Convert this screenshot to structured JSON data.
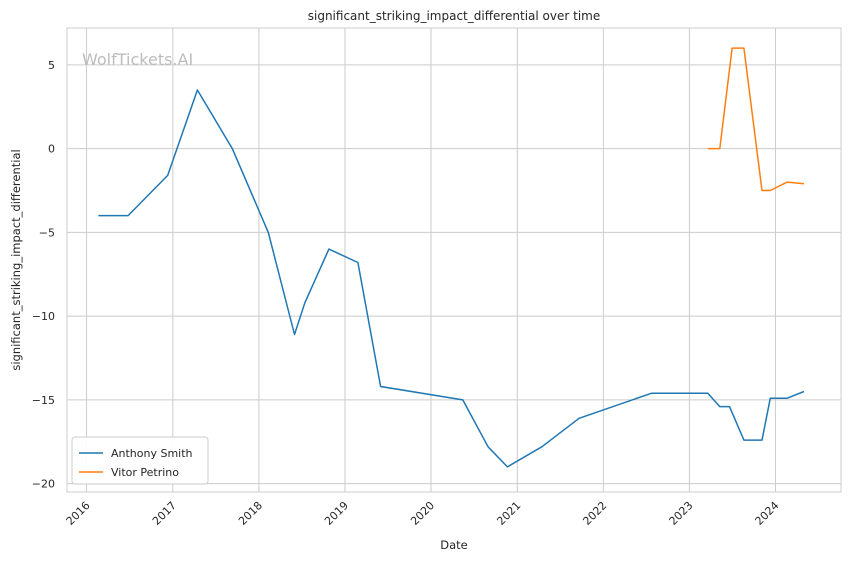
{
  "watermark": "WolfTickets.AI",
  "chart_data": {
    "type": "line",
    "title": "significant_striking_impact_differential over time",
    "xlabel": "Date",
    "ylabel": "significant_striking_impact_differential",
    "x_ticks": [
      "2016",
      "2017",
      "2018",
      "2019",
      "2020",
      "2021",
      "2022",
      "2023",
      "2024"
    ],
    "y_ticks": [
      5,
      0,
      -5,
      -10,
      -15,
      -20
    ],
    "xlim": [
      "2015-10-10",
      "2024-10-05"
    ],
    "ylim": [
      -20.5,
      7.2
    ],
    "grid": true,
    "legend_position": "bottom-left",
    "series": [
      {
        "name": "Anthony Smith",
        "color": "#1f77b4",
        "points": [
          [
            "2016-02-20",
            -4.0
          ],
          [
            "2016-06-25",
            -4.0
          ],
          [
            "2016-12-10",
            -1.6
          ],
          [
            "2017-04-15",
            3.5
          ],
          [
            "2017-09-10",
            0.0
          ],
          [
            "2018-02-10",
            -5.0
          ],
          [
            "2018-06-01",
            -11.1
          ],
          [
            "2018-07-15",
            -9.2
          ],
          [
            "2018-10-25",
            -6.0
          ],
          [
            "2019-02-25",
            -6.8
          ],
          [
            "2019-06-01",
            -14.2
          ],
          [
            "2020-05-15",
            -15.0
          ],
          [
            "2020-08-30",
            -17.8
          ],
          [
            "2020-11-20",
            -19.0
          ],
          [
            "2021-04-15",
            -17.8
          ],
          [
            "2021-09-20",
            -16.1
          ],
          [
            "2022-07-25",
            -14.6
          ],
          [
            "2023-03-20",
            -14.6
          ],
          [
            "2023-05-10",
            -15.4
          ],
          [
            "2023-06-20",
            -15.4
          ],
          [
            "2023-08-20",
            -17.4
          ],
          [
            "2023-11-05",
            -17.4
          ],
          [
            "2023-12-10",
            -14.9
          ],
          [
            "2024-02-20",
            -14.9
          ],
          [
            "2024-05-01",
            -14.5
          ]
        ]
      },
      {
        "name": "Vitor Petrino",
        "color": "#ff7f0e",
        "points": [
          [
            "2023-03-20",
            0.0
          ],
          [
            "2023-05-10",
            0.0
          ],
          [
            "2023-07-01",
            6.0
          ],
          [
            "2023-08-20",
            6.0
          ],
          [
            "2023-11-05",
            -2.5
          ],
          [
            "2023-12-10",
            -2.5
          ],
          [
            "2024-02-20",
            -2.0
          ],
          [
            "2024-05-01",
            -2.1
          ]
        ]
      }
    ]
  }
}
